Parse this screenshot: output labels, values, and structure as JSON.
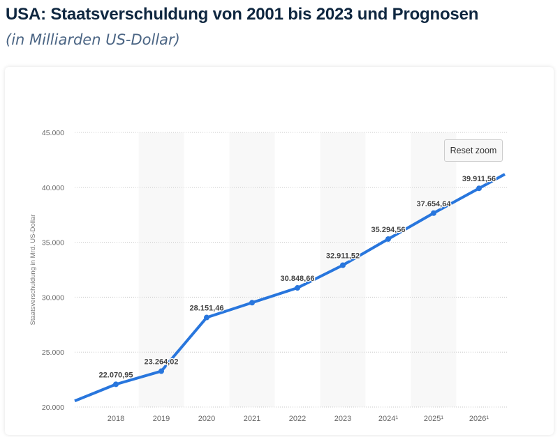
{
  "header": {
    "title": "USA: Staatsverschuldung von 2001 bis 2023 und Prognosen",
    "subtitle": "(in Milliarden US-Dollar)"
  },
  "reset_zoom_label": "Reset zoom",
  "chart_data": {
    "type": "line",
    "title": "",
    "ylabel": "Staatsverschuldung in Mrd. US-Dollar",
    "xlabel": "",
    "categories": [
      "2018",
      "2019",
      "2020",
      "2021",
      "2022",
      "2023",
      "2024¹",
      "2025¹",
      "2026¹"
    ],
    "values": [
      22070.95,
      23264.02,
      28151.46,
      29500,
      30848.66,
      32911.52,
      35294.56,
      37654.64,
      39911.56
    ],
    "data_labels": [
      "22.070,95",
      "23.264,02",
      "28.151,46",
      null,
      "30.848,66",
      "32.911,52",
      "35.294,56",
      "37.654,64",
      "39.911,56"
    ],
    "ylim": [
      20000,
      45000
    ],
    "yticks": [
      20000,
      25000,
      30000,
      35000,
      40000,
      45000
    ],
    "ytick_labels": [
      "20.000",
      "25.000",
      "30.000",
      "35.000",
      "40.000",
      "45.000"
    ],
    "grid": true,
    "color": "#2876dd"
  }
}
